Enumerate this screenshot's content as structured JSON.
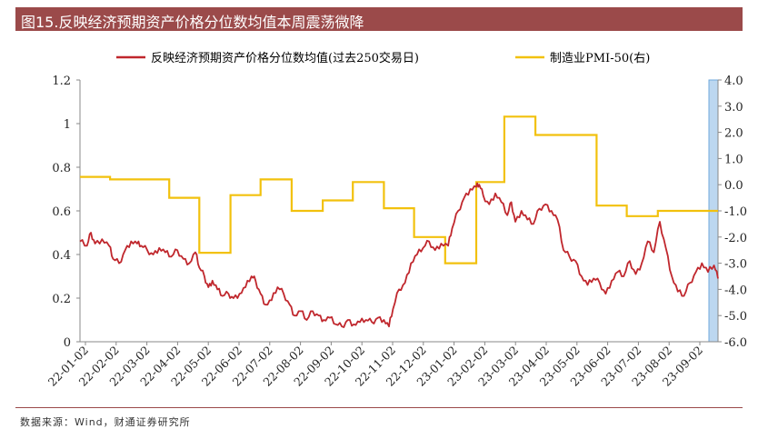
{
  "title": "图15.反映经济预期资产价格分位数均值本周震荡微降",
  "source": "数据来源：Wind，财通证券研究所",
  "chart_data": {
    "type": "line",
    "title": "图15.反映经济预期资产价格分位数均值本周震荡微降",
    "legend_position": "top",
    "x_tick_labels": [
      "22-01-02",
      "22-02-02",
      "22-03-02",
      "22-04-02",
      "22-05-02",
      "22-06-02",
      "22-07-02",
      "22-08-02",
      "22-09-02",
      "22-10-02",
      "22-11-02",
      "22-12-02",
      "23-01-02",
      "23-02-02",
      "23-03-02",
      "23-04-02",
      "23-05-02",
      "23-06-02",
      "23-07-02",
      "23-08-02",
      "23-09-02"
    ],
    "x_range": [
      "2022-01-02",
      "2023-09-30"
    ],
    "y_left": {
      "min": 0,
      "max": 1.2,
      "ticks": [
        "0",
        "0.2",
        "0.4",
        "0.6",
        "0.8",
        "1",
        "1.2"
      ]
    },
    "y_right": {
      "min": -6.0,
      "max": 4.0,
      "ticks": [
        "-6.0",
        "-5.0",
        "-4.0",
        "-3.0",
        "-2.0",
        "-1.0",
        "0.0",
        "1.0",
        "2.0",
        "3.0",
        "4.0"
      ]
    },
    "grid": false,
    "colors": {
      "series1": "#c0272d",
      "series2": "#f2c10d",
      "highlight": "#bcd7f0",
      "title_bg": "#9b4a4a"
    },
    "series": [
      {
        "name": "反映经济预期资产价格分位数均值(过去250交易日)",
        "axis": "left",
        "points": [
          [
            "2022-01-02",
            0.46
          ],
          [
            "2022-01-09",
            0.44
          ],
          [
            "2022-01-13",
            0.5
          ],
          [
            "2022-01-17",
            0.45
          ],
          [
            "2022-01-24",
            0.47
          ],
          [
            "2022-01-31",
            0.44
          ],
          [
            "2022-02-04",
            0.38
          ],
          [
            "2022-02-10",
            0.36
          ],
          [
            "2022-02-16",
            0.42
          ],
          [
            "2022-02-22",
            0.46
          ],
          [
            "2022-02-28",
            0.45
          ],
          [
            "2022-03-04",
            0.44
          ],
          [
            "2022-03-10",
            0.42
          ],
          [
            "2022-03-16",
            0.4
          ],
          [
            "2022-03-22",
            0.43
          ],
          [
            "2022-03-28",
            0.41
          ],
          [
            "2022-04-03",
            0.39
          ],
          [
            "2022-04-09",
            0.42
          ],
          [
            "2022-04-15",
            0.38
          ],
          [
            "2022-04-21",
            0.36
          ],
          [
            "2022-04-27",
            0.41
          ],
          [
            "2022-05-01",
            0.34
          ],
          [
            "2022-05-06",
            0.3
          ],
          [
            "2022-05-10",
            0.25
          ],
          [
            "2022-05-14",
            0.28
          ],
          [
            "2022-05-19",
            0.24
          ],
          [
            "2022-05-24",
            0.21
          ],
          [
            "2022-05-30",
            0.22
          ],
          [
            "2022-06-04",
            0.2
          ],
          [
            "2022-06-10",
            0.22
          ],
          [
            "2022-06-16",
            0.25
          ],
          [
            "2022-06-22",
            0.3
          ],
          [
            "2022-06-26",
            0.28
          ],
          [
            "2022-07-01",
            0.22
          ],
          [
            "2022-07-06",
            0.17
          ],
          [
            "2022-07-12",
            0.19
          ],
          [
            "2022-07-18",
            0.25
          ],
          [
            "2022-07-24",
            0.22
          ],
          [
            "2022-07-30",
            0.17
          ],
          [
            "2022-08-04",
            0.12
          ],
          [
            "2022-08-10",
            0.14
          ],
          [
            "2022-08-16",
            0.1
          ],
          [
            "2022-08-22",
            0.14
          ],
          [
            "2022-08-28",
            0.12
          ],
          [
            "2022-09-02",
            0.1
          ],
          [
            "2022-09-08",
            0.11
          ],
          [
            "2022-09-14",
            0.08
          ],
          [
            "2022-09-20",
            0.07
          ],
          [
            "2022-09-26",
            0.1
          ],
          [
            "2022-10-02",
            0.08
          ],
          [
            "2022-10-08",
            0.09
          ],
          [
            "2022-10-14",
            0.1
          ],
          [
            "2022-10-20",
            0.09
          ],
          [
            "2022-10-26",
            0.11
          ],
          [
            "2022-11-01",
            0.1
          ],
          [
            "2022-11-06",
            0.07
          ],
          [
            "2022-11-10",
            0.15
          ],
          [
            "2022-11-16",
            0.24
          ],
          [
            "2022-11-22",
            0.27
          ],
          [
            "2022-11-28",
            0.36
          ],
          [
            "2022-12-04",
            0.4
          ],
          [
            "2022-12-10",
            0.43
          ],
          [
            "2022-12-16",
            0.46
          ],
          [
            "2022-12-22",
            0.42
          ],
          [
            "2022-12-28",
            0.45
          ],
          [
            "2023-01-04",
            0.44
          ],
          [
            "2023-01-08",
            0.52
          ],
          [
            "2023-01-14",
            0.6
          ],
          [
            "2023-01-20",
            0.66
          ],
          [
            "2023-01-26",
            0.7
          ],
          [
            "2023-02-01",
            0.71
          ],
          [
            "2023-02-04",
            0.72
          ],
          [
            "2023-02-08",
            0.67
          ],
          [
            "2023-02-14",
            0.63
          ],
          [
            "2023-02-20",
            0.68
          ],
          [
            "2023-02-26",
            0.64
          ],
          [
            "2023-03-04",
            0.58
          ],
          [
            "2023-03-08",
            0.64
          ],
          [
            "2023-03-12",
            0.55
          ],
          [
            "2023-03-18",
            0.6
          ],
          [
            "2023-03-24",
            0.56
          ],
          [
            "2023-03-30",
            0.54
          ],
          [
            "2023-04-05",
            0.61
          ],
          [
            "2023-04-11",
            0.63
          ],
          [
            "2023-04-17",
            0.6
          ],
          [
            "2023-04-23",
            0.56
          ],
          [
            "2023-04-29",
            0.42
          ],
          [
            "2023-05-05",
            0.39
          ],
          [
            "2023-05-11",
            0.37
          ],
          [
            "2023-05-17",
            0.3
          ],
          [
            "2023-05-23",
            0.26
          ],
          [
            "2023-05-29",
            0.29
          ],
          [
            "2023-06-04",
            0.27
          ],
          [
            "2023-06-10",
            0.22
          ],
          [
            "2023-06-16",
            0.28
          ],
          [
            "2023-06-22",
            0.32
          ],
          [
            "2023-06-28",
            0.3
          ],
          [
            "2023-07-04",
            0.37
          ],
          [
            "2023-07-10",
            0.31
          ],
          [
            "2023-07-16",
            0.36
          ],
          [
            "2023-07-22",
            0.46
          ],
          [
            "2023-07-28",
            0.41
          ],
          [
            "2023-08-03",
            0.55
          ],
          [
            "2023-08-09",
            0.43
          ],
          [
            "2023-08-15",
            0.3
          ],
          [
            "2023-08-21",
            0.23
          ],
          [
            "2023-08-27",
            0.21
          ],
          [
            "2023-09-02",
            0.27
          ],
          [
            "2023-09-08",
            0.32
          ],
          [
            "2023-09-14",
            0.36
          ],
          [
            "2023-09-20",
            0.32
          ],
          [
            "2023-09-26",
            0.35
          ],
          [
            "2023-09-30",
            0.29
          ]
        ]
      },
      {
        "name": "制造业PMI-50(右)",
        "axis": "right",
        "points": [
          [
            "2022-01-02",
            0.3
          ],
          [
            "2022-02-01",
            0.3
          ],
          [
            "2022-02-01",
            0.2
          ],
          [
            "2022-03-01",
            0.2
          ],
          [
            "2022-03-01",
            0.2
          ],
          [
            "2022-04-01",
            0.2
          ],
          [
            "2022-04-01",
            -0.5
          ],
          [
            "2022-05-01",
            -0.5
          ],
          [
            "2022-05-01",
            -2.6
          ],
          [
            "2022-06-01",
            -2.6
          ],
          [
            "2022-06-01",
            -0.4
          ],
          [
            "2022-07-01",
            -0.4
          ],
          [
            "2022-07-01",
            0.2
          ],
          [
            "2022-08-01",
            0.2
          ],
          [
            "2022-08-01",
            -1.0
          ],
          [
            "2022-09-01",
            -1.0
          ],
          [
            "2022-09-01",
            -0.6
          ],
          [
            "2022-10-01",
            -0.6
          ],
          [
            "2022-10-01",
            0.1
          ],
          [
            "2022-11-01",
            0.1
          ],
          [
            "2022-11-01",
            -0.9
          ],
          [
            "2022-12-01",
            -0.9
          ],
          [
            "2022-12-01",
            -2.0
          ],
          [
            "2023-01-01",
            -2.0
          ],
          [
            "2023-01-01",
            -3.0
          ],
          [
            "2023-02-01",
            -3.0
          ],
          [
            "2023-02-01",
            0.1
          ],
          [
            "2023-03-01",
            0.1
          ],
          [
            "2023-03-01",
            2.6
          ],
          [
            "2023-04-01",
            2.6
          ],
          [
            "2023-04-01",
            1.9
          ],
          [
            "2023-06-01",
            1.9
          ],
          [
            "2023-06-01",
            -0.8
          ],
          [
            "2023-07-01",
            -0.8
          ],
          [
            "2023-07-01",
            -1.2
          ],
          [
            "2023-08-01",
            -1.2
          ],
          [
            "2023-08-01",
            -1.0
          ],
          [
            "2023-09-30",
            -1.0
          ]
        ]
      }
    ]
  }
}
